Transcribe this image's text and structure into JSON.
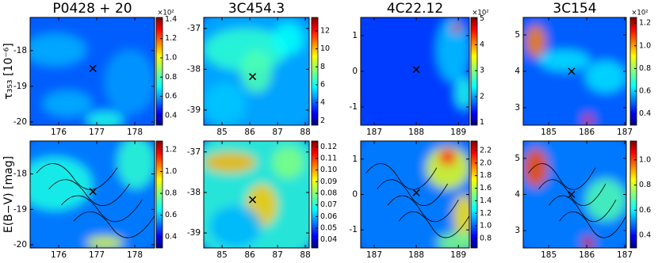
{
  "chart_data": [
    {
      "type": "heatmap",
      "title": "P0428 + 20",
      "ylabel": "τ₃₅₃ [10⁻⁶]",
      "xlim": [
        175.25,
        178.52
      ],
      "ylim": [
        -20.09,
        -17.07
      ],
      "xticks": [
        176,
        177,
        178
      ],
      "yticks": [
        -18,
        -19,
        -20
      ],
      "target": {
        "x": 176.9,
        "y": -18.5
      },
      "colorbar": {
        "lim": [
          0.3,
          1.42
        ],
        "ticks": [
          0.4,
          0.6,
          0.8,
          {
            "value": 1,
            "label": "1.0"
          },
          1.2,
          1.4
        ],
        "label": "×10²"
      }
    },
    {
      "type": "heatmap",
      "title": "3C454.3",
      "xlim": [
        84.34,
        88.14
      ],
      "ylim": [
        -39.37,
        -36.73
      ],
      "xticks": [
        85,
        86,
        87,
        88
      ],
      "yticks": [
        -37,
        -38,
        -39
      ],
      "target": {
        "x": 86.1,
        "y": -38.18
      },
      "colorbar": {
        "lim": [
          1.5,
          13.5
        ],
        "ticks": [
          2,
          4,
          6,
          8,
          10,
          12
        ]
      }
    },
    {
      "type": "heatmap",
      "title": "4C22.12",
      "xlim": [
        186.68,
        189.26
      ],
      "ylim": [
        -1.51,
        1.51
      ],
      "xticks": [
        187,
        188,
        189
      ],
      "yticks": [
        1,
        0,
        -1
      ],
      "target": {
        "x": 188.0,
        "y": 0.05
      },
      "colorbar": {
        "lim": [
          0.9,
          5.05
        ],
        "ticks": [
          1,
          2,
          3,
          4,
          5
        ],
        "label": "×10²"
      }
    },
    {
      "type": "heatmap",
      "title": "3C154",
      "xlim": [
        184.33,
        187.04
      ],
      "ylim": [
        2.52,
        5.48
      ],
      "xticks": [
        185,
        186,
        187
      ],
      "yticks": [
        5,
        4,
        3
      ],
      "target": {
        "x": 185.6,
        "y": 4.0
      },
      "colorbar": {
        "lim": [
          0.3,
          1.25
        ],
        "ticks": [
          0.4,
          0.6,
          0.8,
          {
            "value": 1,
            "label": "1.0"
          },
          1.2
        ],
        "label": "×10²"
      }
    },
    {
      "type": "heatmap",
      "ylabel": "E(B−V) [mag]",
      "xlim": [
        175.25,
        178.52
      ],
      "ylim": [
        -20.09,
        -17.07
      ],
      "xticks": [
        176,
        177,
        178
      ],
      "yticks": [
        -18,
        -19,
        -20
      ],
      "target": {
        "x": 176.9,
        "y": -18.5
      },
      "colorbar": {
        "lim": [
          0.3,
          1.28
        ],
        "ticks": [
          0.4,
          0.6,
          0.8,
          {
            "value": 1,
            "label": "1.0"
          },
          1.2
        ]
      }
    },
    {
      "type": "heatmap",
      "xlim": [
        84.34,
        88.14
      ],
      "ylim": [
        -39.37,
        -36.73
      ],
      "xticks": [
        85,
        86,
        87,
        88
      ],
      "yticks": [
        -37,
        -38,
        -39
      ],
      "target": {
        "x": 86.1,
        "y": -38.18
      },
      "colorbar": {
        "lim": [
          0.033,
          0.125
        ],
        "ticks": [
          0.04,
          0.05,
          0.06,
          0.07,
          0.08,
          0.09,
          {
            "value": 0.1,
            "label": "0.10"
          },
          0.11,
          0.12
        ]
      }
    },
    {
      "type": "heatmap",
      "xlim": [
        186.68,
        189.26
      ],
      "ylim": [
        -1.51,
        1.51
      ],
      "xticks": [
        187,
        188,
        189
      ],
      "yticks": [
        1,
        0,
        -1
      ],
      "target": {
        "x": 188.0,
        "y": 0.05
      },
      "colorbar": {
        "lim": [
          0.65,
          2.35
        ],
        "ticks": [
          0.8,
          {
            "value": 1,
            "label": "1.0"
          },
          1.2,
          1.4,
          1.6,
          1.8,
          {
            "value": 2,
            "label": "2.0"
          },
          2.2
        ]
      }
    },
    {
      "type": "heatmap",
      "xlim": [
        184.33,
        187.04
      ],
      "ylim": [
        2.52,
        5.48
      ],
      "xticks": [
        185,
        186,
        187
      ],
      "yticks": [
        5,
        4,
        3
      ],
      "target": {
        "x": 185.6,
        "y": 4.0
      },
      "colorbar": {
        "lim": [
          0.3,
          1.15
        ],
        "ticks": [
          0.4,
          0.6,
          0.8,
          {
            "value": 1,
            "label": "1.0"
          }
        ]
      }
    }
  ]
}
